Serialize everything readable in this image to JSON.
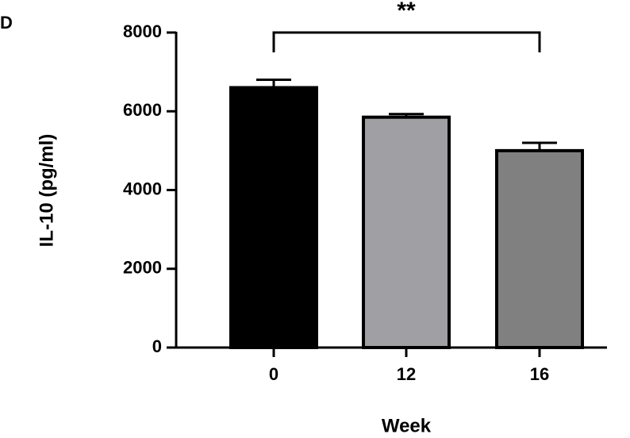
{
  "chart_data": {
    "type": "bar",
    "panel_label": "D",
    "annotation": "**",
    "xlabel": "Week",
    "ylabel": "IL-10 (pg/ml)",
    "categories": [
      "0",
      "12",
      "16"
    ],
    "values": [
      6600,
      5850,
      5000
    ],
    "errors": [
      200,
      80,
      200
    ],
    "colors": [
      "#000000",
      "#a0a0a4",
      "#808080"
    ],
    "ylim": [
      0,
      8000
    ],
    "yticks": [
      0,
      2000,
      4000,
      6000,
      8000
    ]
  }
}
